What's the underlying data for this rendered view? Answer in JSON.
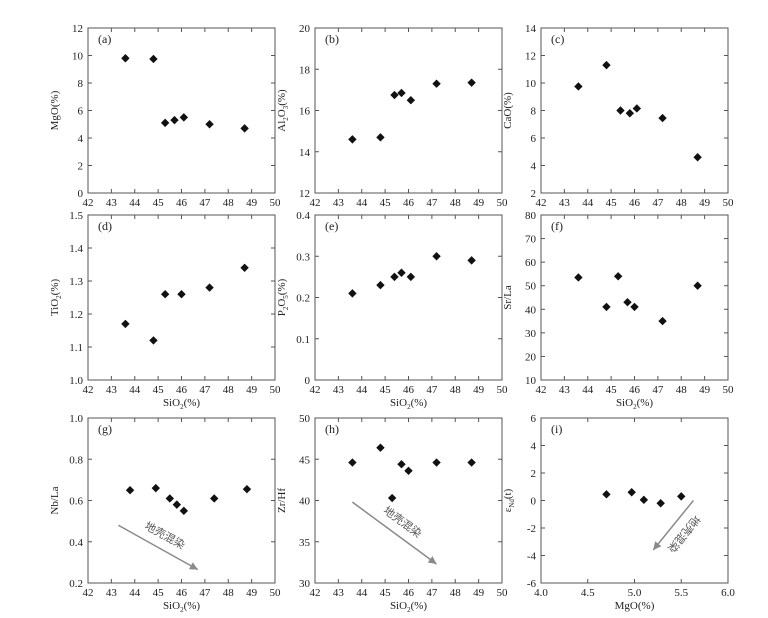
{
  "chart_data": [
    {
      "type": "scatter",
      "panel_label": "(a)",
      "ylabel": "MgO(%)",
      "xlabel": "",
      "xlim": [
        42,
        50
      ],
      "ylim": [
        0,
        12
      ],
      "xticks": [
        "42",
        "43",
        "44",
        "45",
        "46",
        "47",
        "48",
        "49",
        "50"
      ],
      "yticks": [
        "0",
        "2",
        "4",
        "6",
        "8",
        "10",
        "12"
      ],
      "points": [
        [
          43.6,
          9.8
        ],
        [
          44.8,
          9.75
        ],
        [
          45.3,
          5.1
        ],
        [
          45.7,
          5.3
        ],
        [
          46.1,
          5.5
        ],
        [
          47.2,
          5.0
        ],
        [
          48.7,
          4.7
        ]
      ]
    },
    {
      "type": "scatter",
      "panel_label": "(b)",
      "ylabel": "Al2O3(%)",
      "xlabel": "",
      "xlim": [
        42,
        50
      ],
      "ylim": [
        12,
        20
      ],
      "xticks": [
        "42",
        "43",
        "44",
        "45",
        "46",
        "47",
        "48",
        "49",
        "50"
      ],
      "yticks": [
        "12",
        "14",
        "16",
        "18",
        "20"
      ],
      "points": [
        [
          43.6,
          14.6
        ],
        [
          44.8,
          14.7
        ],
        [
          45.4,
          16.75
        ],
        [
          45.7,
          16.85
        ],
        [
          46.1,
          16.5
        ],
        [
          47.2,
          17.3
        ],
        [
          48.7,
          17.35
        ]
      ]
    },
    {
      "type": "scatter",
      "panel_label": "(c)",
      "ylabel": "CaO(%)",
      "xlabel": "",
      "xlim": [
        42,
        50
      ],
      "ylim": [
        2,
        14
      ],
      "xticks": [
        "42",
        "43",
        "44",
        "45",
        "46",
        "47",
        "48",
        "49",
        "50"
      ],
      "yticks": [
        "2",
        "4",
        "6",
        "8",
        "10",
        "12",
        "14"
      ],
      "points": [
        [
          43.6,
          9.75
        ],
        [
          44.8,
          11.3
        ],
        [
          45.4,
          8.0
        ],
        [
          45.8,
          7.8
        ],
        [
          46.1,
          8.15
        ],
        [
          47.2,
          7.45
        ],
        [
          48.7,
          4.6
        ]
      ]
    },
    {
      "type": "scatter",
      "panel_label": "(d)",
      "ylabel": "TiO2(%)",
      "xlabel": "SiO2(%)",
      "xlim": [
        42,
        50
      ],
      "ylim": [
        1.0,
        1.5
      ],
      "xticks": [
        "42",
        "43",
        "44",
        "45",
        "46",
        "47",
        "48",
        "49",
        "50"
      ],
      "yticks": [
        "1.0",
        "1.1",
        "1.2",
        "1.3",
        "1.4",
        "1.5"
      ],
      "points": [
        [
          43.6,
          1.17
        ],
        [
          44.8,
          1.12
        ],
        [
          45.3,
          1.26
        ],
        [
          46.0,
          1.26
        ],
        [
          47.2,
          1.28
        ],
        [
          48.7,
          1.34
        ]
      ]
    },
    {
      "type": "scatter",
      "panel_label": "(e)",
      "ylabel": "P2O5(%)",
      "xlabel": "SiO2(%)",
      "xlim": [
        42,
        50
      ],
      "ylim": [
        0,
        0.4
      ],
      "xticks": [
        "42",
        "43",
        "44",
        "45",
        "46",
        "47",
        "48",
        "49",
        "50"
      ],
      "yticks": [
        "0",
        "0.1",
        "0.2",
        "0.3",
        "0.4"
      ],
      "points": [
        [
          43.6,
          0.21
        ],
        [
          44.8,
          0.23
        ],
        [
          45.4,
          0.25
        ],
        [
          45.7,
          0.26
        ],
        [
          46.1,
          0.25
        ],
        [
          47.2,
          0.3
        ],
        [
          48.7,
          0.29
        ]
      ]
    },
    {
      "type": "scatter",
      "panel_label": "(f)",
      "ylabel": "Sr/La",
      "xlabel": "SiO2(%)",
      "xlim": [
        42,
        50
      ],
      "ylim": [
        10,
        80
      ],
      "xticks": [
        "42",
        "43",
        "44",
        "45",
        "46",
        "47",
        "48",
        "49",
        "50"
      ],
      "yticks": [
        "10",
        "20",
        "30",
        "40",
        "50",
        "60",
        "70",
        "80"
      ],
      "points": [
        [
          43.6,
          53.5
        ],
        [
          44.8,
          41
        ],
        [
          45.3,
          54
        ],
        [
          45.7,
          43
        ],
        [
          46.0,
          41
        ],
        [
          47.2,
          35
        ],
        [
          48.7,
          50
        ]
      ]
    },
    {
      "type": "scatter",
      "panel_label": "(g)",
      "ylabel": "Nb/La",
      "xlabel": "SiO2(%)",
      "xlim": [
        42,
        50
      ],
      "ylim": [
        0.2,
        1.0
      ],
      "xticks": [
        "42",
        "43",
        "44",
        "45",
        "46",
        "47",
        "48",
        "49",
        "50"
      ],
      "yticks": [
        "0.2",
        "0.4",
        "0.6",
        "0.8",
        "1.0"
      ],
      "points": [
        [
          43.8,
          0.65
        ],
        [
          44.9,
          0.66
        ],
        [
          45.5,
          0.61
        ],
        [
          45.8,
          0.58
        ],
        [
          46.1,
          0.55
        ],
        [
          47.4,
          0.61
        ],
        [
          48.8,
          0.655
        ]
      ],
      "arrow": {
        "from": [
          43.3,
          0.48
        ],
        "to": [
          46.7,
          0.265
        ],
        "label": "地壳混染"
      }
    },
    {
      "type": "scatter",
      "panel_label": "(h)",
      "ylabel": "Zr/Hf",
      "xlabel": "SiO2(%)",
      "xlim": [
        42,
        50
      ],
      "ylim": [
        30,
        50
      ],
      "xticks": [
        "42",
        "43",
        "44",
        "45",
        "46",
        "47",
        "48",
        "49",
        "50"
      ],
      "yticks": [
        "30",
        "35",
        "40",
        "45",
        "50"
      ],
      "points": [
        [
          43.6,
          44.6
        ],
        [
          44.8,
          46.4
        ],
        [
          45.3,
          40.3
        ],
        [
          45.7,
          44.4
        ],
        [
          46.0,
          43.6
        ],
        [
          47.2,
          44.6
        ],
        [
          48.7,
          44.6
        ]
      ],
      "arrow": {
        "from": [
          43.6,
          39.8
        ],
        "to": [
          47.2,
          32.3
        ],
        "label": "地壳混染"
      }
    },
    {
      "type": "scatter",
      "panel_label": "(i)",
      "ylabel": "εNd(t)",
      "xlabel": "MgO(%)",
      "xlim": [
        4.0,
        6.0
      ],
      "ylim": [
        -6,
        6
      ],
      "xticks": [
        "4.0",
        "4.5",
        "5.0",
        "5.5",
        "6.0"
      ],
      "yticks": [
        "-6",
        "-4",
        "-2",
        "0",
        "2",
        "4",
        "6"
      ],
      "points": [
        [
          4.7,
          0.45
        ],
        [
          4.97,
          0.6
        ],
        [
          5.1,
          0.05
        ],
        [
          5.28,
          -0.2
        ],
        [
          5.5,
          0.3
        ]
      ],
      "arrow": {
        "from": [
          5.63,
          0.0
        ],
        "to": [
          5.2,
          -3.6
        ],
        "label": "地壳混染"
      }
    }
  ]
}
